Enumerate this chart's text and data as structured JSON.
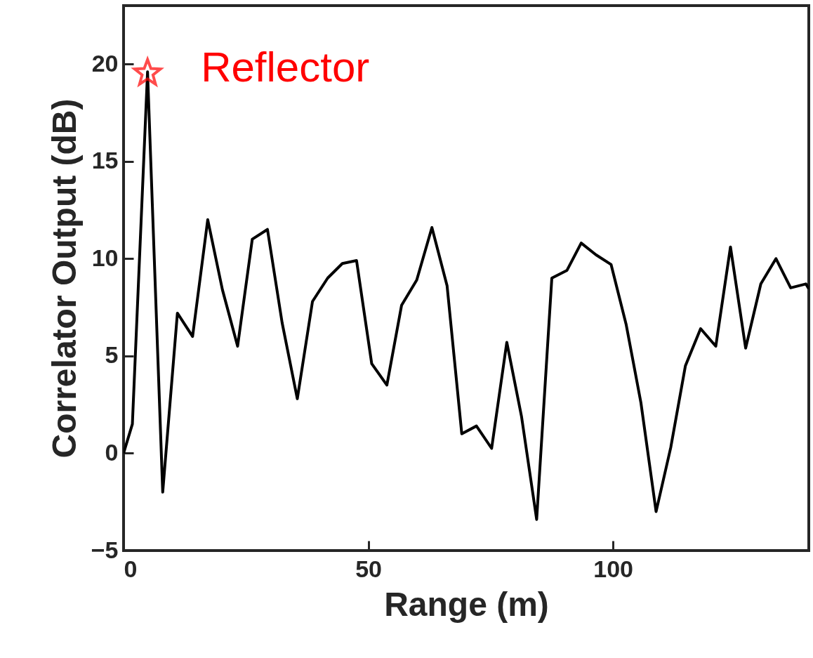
{
  "chart_data": {
    "type": "line",
    "xlabel": "Range (m)",
    "ylabel": "Correlator Output (dB)",
    "xlim": [
      0,
      140
    ],
    "ylim": [
      -5,
      23
    ],
    "xticks": [
      0,
      50,
      100
    ],
    "yticks": [
      -5,
      0,
      5,
      10,
      15,
      20
    ],
    "series": [
      {
        "color": "#000000",
        "x": [
          0,
          1.8,
          4.9,
          8.0,
          11.0,
          14.1,
          17.2,
          20.2,
          23.3,
          26.3,
          29.4,
          32.4,
          35.5,
          38.6,
          41.7,
          44.7,
          47.6,
          50.7,
          53.8,
          56.8,
          59.9,
          63.0,
          66.1,
          69.1,
          72.1,
          75.2,
          78.3,
          81.3,
          84.4,
          87.5,
          90.6,
          93.5,
          96.5,
          99.6,
          102.7,
          105.7,
          108.8,
          111.8,
          114.8,
          117.9,
          121.0,
          124.0,
          127.1,
          130.2,
          133.3,
          136.3,
          139.4,
          140
        ],
        "values": [
          0,
          1.5,
          19.6,
          -2.0,
          7.2,
          6.0,
          12.0,
          8.4,
          5.5,
          11.0,
          11.5,
          6.7,
          2.8,
          7.8,
          9.0,
          9.75,
          9.9,
          4.6,
          3.5,
          7.6,
          8.9,
          11.6,
          8.6,
          1.0,
          1.4,
          0.25,
          5.7,
          1.9,
          -3.4,
          9.0,
          9.4,
          10.8,
          10.2,
          9.7,
          6.6,
          2.6,
          -3.0,
          0.3,
          4.5,
          6.4,
          5.5,
          10.6,
          5.4,
          8.7,
          10.0,
          8.5,
          8.7,
          8.45
        ]
      },
      {
        "type": "scatter",
        "name": "Reflector",
        "color": "#ff0000",
        "marker": "star",
        "x": [
          4.9
        ],
        "values": [
          19.6
        ]
      }
    ]
  }
}
